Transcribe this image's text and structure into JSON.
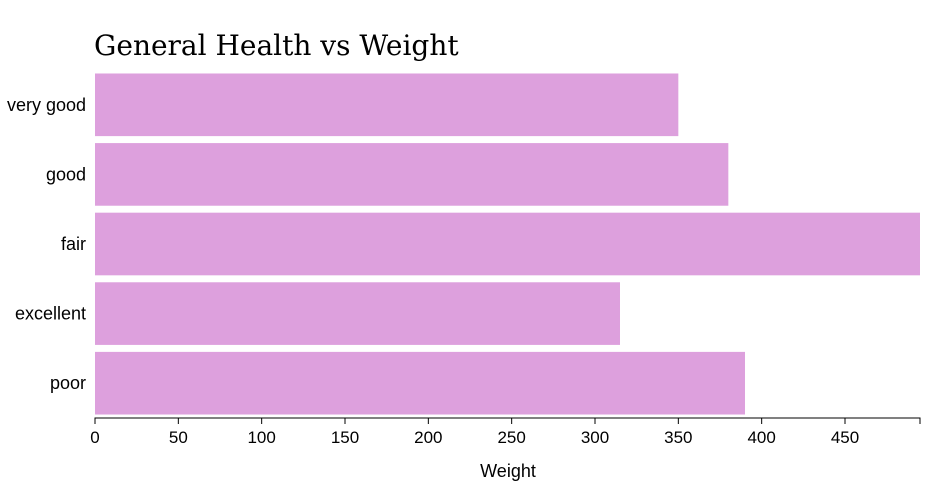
{
  "chart_data": {
    "type": "bar",
    "orientation": "horizontal",
    "title": "General Health vs Weight",
    "xlabel": "Weight",
    "ylabel": "",
    "categories": [
      "very good",
      "good",
      "fair",
      "excellent",
      "poor"
    ],
    "values": [
      350,
      380,
      495,
      315,
      390
    ],
    "xlim": [
      0,
      495
    ],
    "xticks": [
      0,
      50,
      100,
      150,
      200,
      250,
      300,
      350,
      400,
      450
    ],
    "grid": false,
    "legend": "none",
    "bar_color": "#dda0dd"
  }
}
